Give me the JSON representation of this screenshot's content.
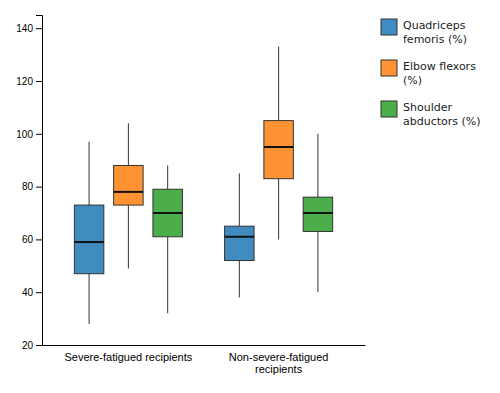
{
  "chart_data": {
    "type": "box",
    "categories": [
      "Severe-fatigued recipients",
      "Non-severe-fatigued\nrecipients"
    ],
    "series": [
      {
        "name": "Quadriceps\nfemoris (%)",
        "values": [
          {
            "min": 28,
            "q1": 47,
            "median": 59,
            "q3": 73,
            "max": 97
          },
          {
            "min": 38,
            "q1": 52,
            "median": 61,
            "q3": 65,
            "max": 85
          }
        ]
      },
      {
        "name": "Elbow flexors\n(%)",
        "values": [
          {
            "min": 49,
            "q1": 73,
            "median": 78,
            "q3": 88,
            "max": 104
          },
          {
            "min": 60,
            "q1": 83,
            "median": 95,
            "q3": 105,
            "max": 133
          }
        ]
      },
      {
        "name": "Shoulder\nabductors (%)",
        "values": [
          {
            "min": 32,
            "q1": 61,
            "median": 70,
            "q3": 79,
            "max": 88
          },
          {
            "min": 40,
            "q1": 63,
            "median": 70,
            "q3": 76,
            "max": 100
          }
        ]
      }
    ],
    "ylim": [
      20,
      145
    ],
    "yticks": [
      20,
      40,
      60,
      80,
      100,
      120,
      140
    ],
    "grid": false,
    "legend": "right"
  }
}
